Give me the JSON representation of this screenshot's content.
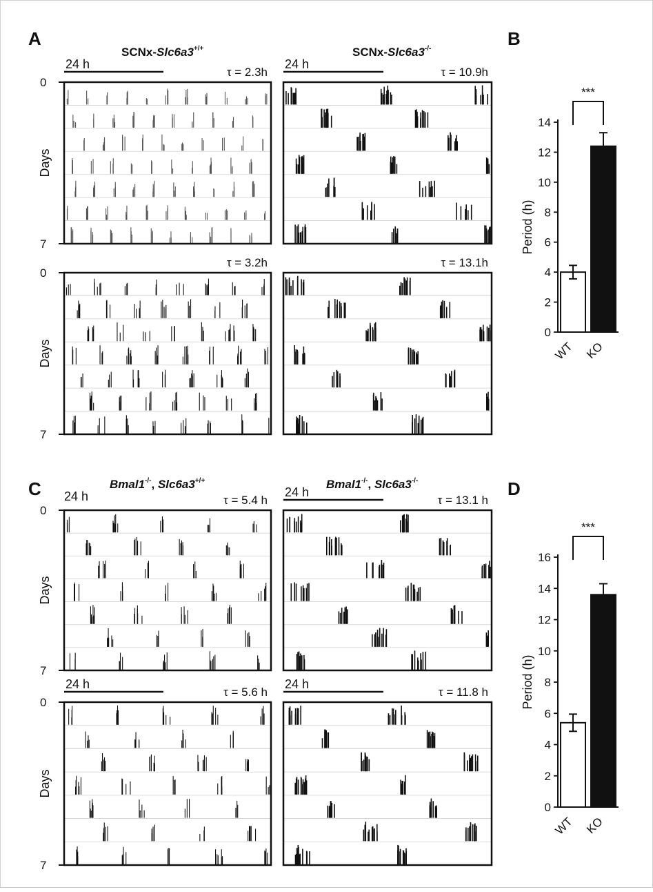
{
  "panels": {
    "A": "A",
    "B": "B",
    "C": "C",
    "D": "D"
  },
  "actograms": [
    {
      "id": "a1",
      "title_main": "SCNx-",
      "title_gene": "Slc6a3",
      "title_sup": "+/+",
      "bar_label": "24 h",
      "show_bar": true,
      "tau": "τ = 2.3h",
      "y_top": "0",
      "y_bottom": "7",
      "y_label": "Days",
      "style": "sparse-thin",
      "period_frac": 0.096,
      "seed": 11
    },
    {
      "id": "a2",
      "title_main": "SCNx-",
      "title_gene": "Slc6a3",
      "title_sup": "-/-",
      "bar_label": "24 h",
      "show_bar": true,
      "tau": "τ = 10.9h",
      "y_top": "",
      "y_bottom": "",
      "y_label": "",
      "style": "dense-blocks",
      "period_frac": 0.454,
      "seed": 23
    },
    {
      "id": "a3",
      "title_main": "",
      "title_gene": "",
      "title_sup": "",
      "bar_label": "",
      "show_bar": false,
      "tau": "τ = 3.2h",
      "y_top": "0",
      "y_bottom": "7",
      "y_label": "Days",
      "style": "medium",
      "period_frac": 0.133,
      "seed": 37
    },
    {
      "id": "a4",
      "title_main": "",
      "title_gene": "",
      "title_sup": "",
      "bar_label": "",
      "show_bar": false,
      "tau": "τ = 13.1h",
      "y_top": "",
      "y_bottom": "",
      "y_label": "",
      "style": "dense-blocks",
      "period_frac": 0.546,
      "seed": 41
    },
    {
      "id": "c1",
      "title_main": "",
      "title_gene": "Bmal1",
      "title_sup": "-/-",
      "title_tail_gene": "Slc6a3",
      "title_tail_sup": "+/+",
      "bar_label": "24 h",
      "show_bar": false,
      "tau": "τ = 5.4 h",
      "y_top": "0",
      "y_bottom": "7",
      "y_label": "Days",
      "style": "medium",
      "period_frac": 0.225,
      "seed": 53
    },
    {
      "id": "c2",
      "title_main": "",
      "title_gene": "Bmal1",
      "title_sup": "-/-",
      "title_tail_gene": "Slc6a3",
      "title_tail_sup": "-/-",
      "bar_label": "24 h",
      "show_bar": true,
      "tau": "τ = 13.1 h",
      "y_top": "",
      "y_bottom": "",
      "y_label": "",
      "style": "dense-blocks",
      "period_frac": 0.546,
      "seed": 61
    },
    {
      "id": "c3",
      "title_main": "",
      "title_gene": "",
      "title_sup": "",
      "bar_label": "24 h",
      "show_bar": true,
      "tau": "τ = 5.6 h",
      "y_top": "0",
      "y_bottom": "7",
      "y_label": "Days",
      "style": "medium",
      "period_frac": 0.233,
      "seed": 71
    },
    {
      "id": "c4",
      "title_main": "",
      "title_gene": "",
      "title_sup": "",
      "bar_label": "24 h",
      "show_bar": true,
      "tau": "τ = 11.8 h",
      "y_top": "",
      "y_bottom": "",
      "y_label": "",
      "style": "dense-blocks",
      "period_frac": 0.492,
      "seed": 83
    }
  ],
  "chart_data": [
    {
      "type": "bar",
      "panel": "B",
      "categories": [
        "WT",
        "KO"
      ],
      "values": [
        4.0,
        12.4
      ],
      "errors": [
        0.45,
        0.9
      ],
      "bar_colors": [
        "#ffffff",
        "#111111"
      ],
      "ylabel": "Period (h)",
      "ylim": [
        0,
        14
      ],
      "yticks": [
        "0",
        "2",
        "4",
        "6",
        "8",
        "10",
        "12",
        "14"
      ],
      "significance": "***"
    },
    {
      "type": "bar",
      "panel": "D",
      "categories": [
        "WT",
        "KO"
      ],
      "values": [
        5.4,
        13.6
      ],
      "errors": [
        0.55,
        0.7
      ],
      "bar_colors": [
        "#ffffff",
        "#111111"
      ],
      "ylabel": "Period (h)",
      "ylim": [
        0,
        16
      ],
      "yticks": [
        "0",
        "2",
        "4",
        "6",
        "8",
        "10",
        "12",
        "14",
        "16"
      ],
      "significance": "***"
    }
  ]
}
